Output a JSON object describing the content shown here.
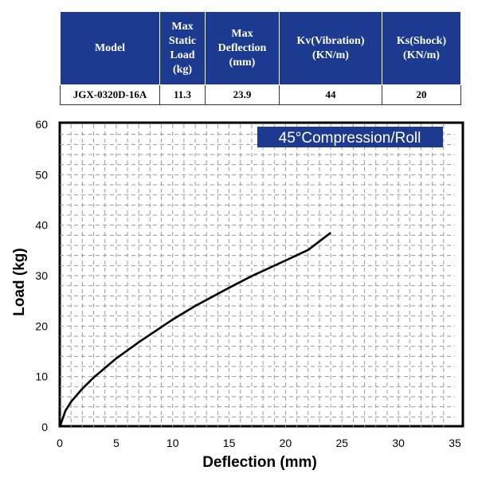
{
  "table": {
    "headers": [
      "Model",
      "Max Static Load (kg)",
      "Max Deflection (mm)",
      "Kv(Vibration) (KN/m)",
      "Ks(Shock) (KN/m)"
    ],
    "header_lines": [
      [
        "Model"
      ],
      [
        "Max",
        "Static",
        "Load",
        "(kg)"
      ],
      [
        "Max",
        "Deflection",
        "(mm)"
      ],
      [
        "Kv(Vibration)",
        "(KN/m)"
      ],
      [
        "Ks(Shock)",
        "(KN/m)"
      ]
    ],
    "row": [
      "JGX-0320D-16A",
      "11.3",
      "23.9",
      "44",
      "20"
    ],
    "header_color": "#1c3a8f"
  },
  "chart_data": {
    "type": "line",
    "title": "45°Compression/Roll",
    "xlabel": "Deflection (mm)",
    "ylabel": "Load (kg)",
    "xlim": [
      0,
      35
    ],
    "ylim": [
      0,
      60
    ],
    "xticks": [
      0,
      5,
      10,
      15,
      20,
      25,
      30,
      35
    ],
    "yticks": [
      0,
      10,
      20,
      30,
      40,
      50,
      60
    ],
    "grid": true,
    "grid_style": "dashed",
    "series": [
      {
        "x": [
          0,
          0.5,
          1,
          2,
          3,
          5,
          7,
          10,
          12,
          15,
          17,
          20,
          22,
          24
        ],
        "y": [
          0,
          3.2,
          5,
          7.6,
          9.8,
          13.6,
          16.8,
          21.3,
          24,
          27.6,
          29.9,
          33,
          35.1,
          38.5
        ]
      }
    ],
    "title_badge_color": "#1c3a8f"
  }
}
